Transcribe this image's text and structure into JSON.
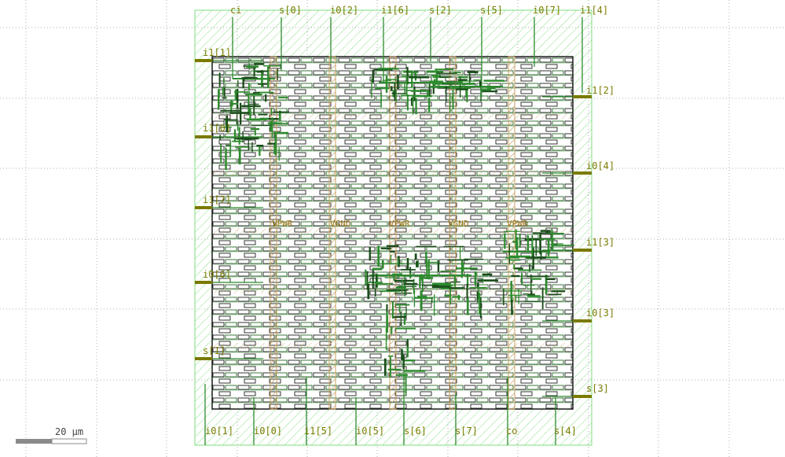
{
  "pins": {
    "top": [
      "ci",
      "s[0]",
      "i0[2]",
      "i1[6]",
      "s[2]",
      "s[5]",
      "i0[7]",
      "i1[4]"
    ],
    "bottom": [
      "i0[1]",
      "i0[0]",
      "i1[5]",
      "i0[5]",
      "s[6]",
      "s[7]",
      "co",
      "s[4]"
    ],
    "left": [
      "i1[1]",
      "i1[0]",
      "i1[7]",
      "i0[6]",
      "s[1]"
    ],
    "right": [
      "i1[2]",
      "i0[4]",
      "i1[3]",
      "i0[3]",
      "s[3]"
    ]
  },
  "rails": [
    "VPWR",
    "VGND",
    "VPWR",
    "VGND",
    "VPWR"
  ],
  "scale_bar": {
    "label": "20 µm"
  },
  "colors": {
    "boundary": "#7fdd7f",
    "metal": "#2e8b2e",
    "dark_metal": "#1a4d1a",
    "cell_outline": "#222222",
    "rail_stripe": "#c8a060",
    "pin_text": "#7a7a00",
    "grid_dots": "#b0b0b0"
  }
}
